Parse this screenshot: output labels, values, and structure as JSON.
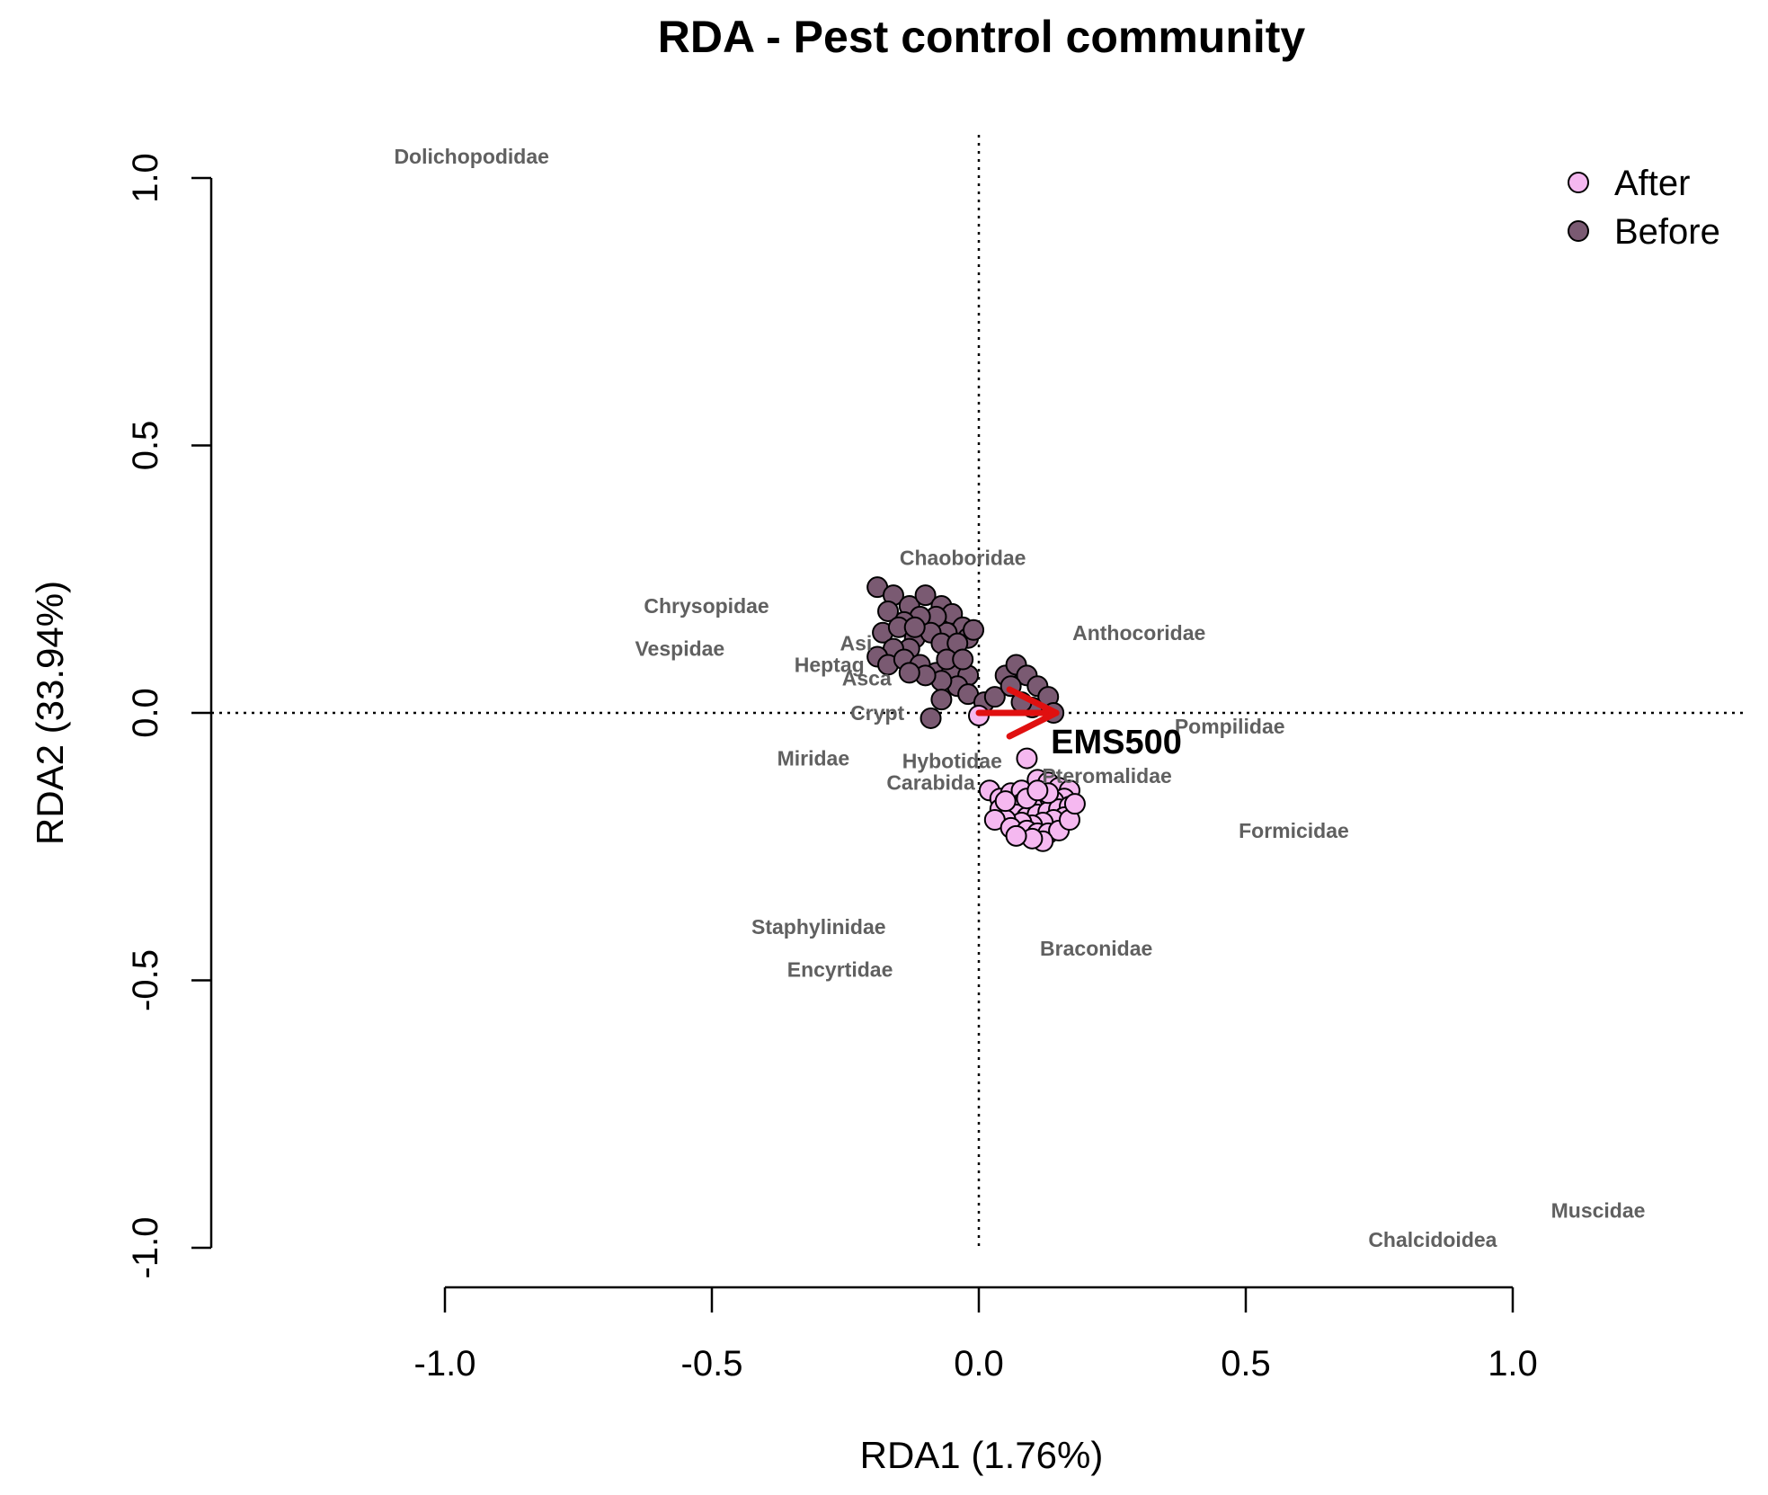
{
  "chart_data": {
    "type": "scatter",
    "title": "RDA - Pest control community",
    "xlabel": "RDA1 (1.76%)",
    "ylabel": "RDA2 (33.94%)",
    "xlim": [
      -1.0,
      1.0
    ],
    "ylim": [
      -1.0,
      1.0
    ],
    "xticks": [
      "-1.0",
      "-0.5",
      "0.0",
      "0.5",
      "1.0"
    ],
    "yticks": [
      "-1.0",
      "-0.5",
      "0.0",
      "0.5",
      "1.0"
    ],
    "xtick_values": [
      -1.0,
      -0.5,
      0.0,
      0.5,
      1.0
    ],
    "ytick_values": [
      -1.0,
      -0.5,
      0.0,
      0.5,
      1.0
    ],
    "reference_lines": {
      "x": 0,
      "y": 0,
      "style": "dotted"
    },
    "legend": {
      "position": "top-right",
      "entries": [
        {
          "label": "After",
          "color": "#f5b8f0"
        },
        {
          "label": "Before",
          "color": "#7a5a72"
        }
      ]
    },
    "env_vector": {
      "label": "EMS500",
      "x": 0.145,
      "y": 0.0,
      "color": "#e01010"
    },
    "species": [
      {
        "name": "Dolichopodidae",
        "x": -0.95,
        "y": 1.04
      },
      {
        "name": "Chaoboridae",
        "x": -0.03,
        "y": 0.29
      },
      {
        "name": "Chrysopidae",
        "x": -0.51,
        "y": 0.2
      },
      {
        "name": "Vespidae",
        "x": -0.56,
        "y": 0.12
      },
      {
        "name": "Anthocoridae",
        "x": 0.3,
        "y": 0.15
      },
      {
        "name": "Asi",
        "x": -0.23,
        "y": 0.13
      },
      {
        "name": "Heptag",
        "x": -0.28,
        "y": 0.09
      },
      {
        "name": "Asca",
        "x": -0.21,
        "y": 0.065
      },
      {
        "name": "Crypt",
        "x": -0.19,
        "y": 0.0
      },
      {
        "name": "Pompilidae",
        "x": 0.47,
        "y": -0.025
      },
      {
        "name": "Miridae",
        "x": -0.31,
        "y": -0.085
      },
      {
        "name": "Hybotidae",
        "x": -0.05,
        "y": -0.09
      },
      {
        "name": "Carabida",
        "x": -0.09,
        "y": -0.13
      },
      {
        "name": "Pteromalidae",
        "x": 0.24,
        "y": -0.118
      },
      {
        "name": "Formicidae",
        "x": 0.59,
        "y": -0.22
      },
      {
        "name": "Staphylinidae",
        "x": -0.3,
        "y": -0.4
      },
      {
        "name": "Encyrtidae",
        "x": -0.26,
        "y": -0.48
      },
      {
        "name": "Braconidae",
        "x": 0.22,
        "y": -0.44
      },
      {
        "name": "Muscidae",
        "x": 1.16,
        "y": -0.93
      },
      {
        "name": "Chalcidoidea",
        "x": 0.85,
        "y": -0.985
      }
    ],
    "series": [
      {
        "name": "Before",
        "color": "#7a5a72",
        "points": [
          [
            -0.19,
            0.235
          ],
          [
            -0.16,
            0.22
          ],
          [
            -0.13,
            0.2
          ],
          [
            -0.1,
            0.22
          ],
          [
            -0.07,
            0.2
          ],
          [
            -0.05,
            0.185
          ],
          [
            -0.03,
            0.16
          ],
          [
            -0.02,
            0.14
          ],
          [
            -0.06,
            0.15
          ],
          [
            -0.08,
            0.18
          ],
          [
            -0.11,
            0.18
          ],
          [
            -0.14,
            0.17
          ],
          [
            -0.17,
            0.19
          ],
          [
            -0.18,
            0.15
          ],
          [
            -0.15,
            0.16
          ],
          [
            -0.12,
            0.14
          ],
          [
            -0.09,
            0.15
          ],
          [
            -0.07,
            0.13
          ],
          [
            -0.04,
            0.13
          ],
          [
            -0.13,
            0.12
          ],
          [
            -0.16,
            0.12
          ],
          [
            -0.19,
            0.105
          ],
          [
            -0.17,
            0.09
          ],
          [
            -0.14,
            0.1
          ],
          [
            -0.11,
            0.09
          ],
          [
            -0.08,
            0.075
          ],
          [
            -0.05,
            0.08
          ],
          [
            -0.02,
            0.07
          ],
          [
            -0.04,
            0.05
          ],
          [
            -0.07,
            0.06
          ],
          [
            -0.1,
            0.07
          ],
          [
            -0.13,
            0.075
          ],
          [
            -0.07,
            0.025
          ],
          [
            -0.09,
            -0.01
          ],
          [
            -0.02,
            0.035
          ],
          [
            0.01,
            0.02
          ],
          [
            0.03,
            0.03
          ],
          [
            0.05,
            0.07
          ],
          [
            0.07,
            0.09
          ],
          [
            0.09,
            0.07
          ],
          [
            0.11,
            0.05
          ],
          [
            0.13,
            0.03
          ],
          [
            0.06,
            0.05
          ],
          [
            0.1,
            0.01
          ],
          [
            0.14,
            0.0
          ],
          [
            -0.01,
            0.155
          ],
          [
            -0.06,
            0.1
          ],
          [
            -0.12,
            0.16
          ],
          [
            -0.03,
            0.1
          ],
          [
            0.08,
            0.02
          ]
        ]
      },
      {
        "name": "After",
        "color": "#f5b8f0",
        "points": [
          [
            0.0,
            -0.005
          ],
          [
            0.09,
            -0.085
          ],
          [
            0.02,
            -0.145
          ],
          [
            0.04,
            -0.16
          ],
          [
            0.06,
            -0.15
          ],
          [
            0.08,
            -0.145
          ],
          [
            0.11,
            -0.125
          ],
          [
            0.13,
            -0.13
          ],
          [
            0.15,
            -0.14
          ],
          [
            0.17,
            -0.145
          ],
          [
            0.16,
            -0.16
          ],
          [
            0.14,
            -0.165
          ],
          [
            0.12,
            -0.165
          ],
          [
            0.1,
            -0.175
          ],
          [
            0.08,
            -0.17
          ],
          [
            0.06,
            -0.175
          ],
          [
            0.04,
            -0.18
          ],
          [
            0.07,
            -0.19
          ],
          [
            0.09,
            -0.195
          ],
          [
            0.11,
            -0.19
          ],
          [
            0.13,
            -0.185
          ],
          [
            0.15,
            -0.18
          ],
          [
            0.17,
            -0.175
          ],
          [
            0.16,
            -0.195
          ],
          [
            0.14,
            -0.2
          ],
          [
            0.12,
            -0.205
          ],
          [
            0.1,
            -0.21
          ],
          [
            0.08,
            -0.205
          ],
          [
            0.05,
            -0.2
          ],
          [
            0.03,
            -0.2
          ],
          [
            0.06,
            -0.215
          ],
          [
            0.09,
            -0.22
          ],
          [
            0.11,
            -0.225
          ],
          [
            0.13,
            -0.225
          ],
          [
            0.15,
            -0.22
          ],
          [
            0.12,
            -0.24
          ],
          [
            0.1,
            -0.235
          ],
          [
            0.07,
            -0.23
          ],
          [
            0.17,
            -0.2
          ],
          [
            0.18,
            -0.17
          ],
          [
            0.05,
            -0.165
          ],
          [
            0.13,
            -0.15
          ],
          [
            0.09,
            -0.16
          ],
          [
            0.11,
            -0.145
          ]
        ]
      }
    ]
  }
}
